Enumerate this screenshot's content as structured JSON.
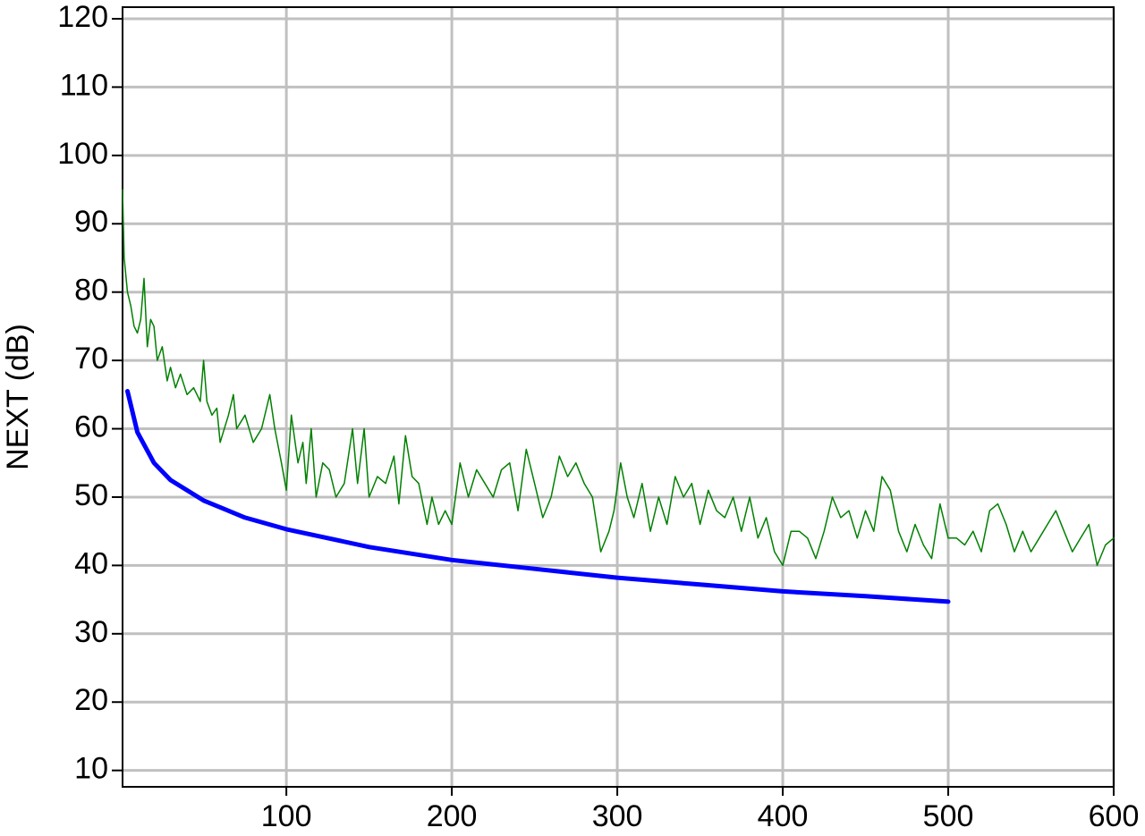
{
  "chart_data": {
    "type": "line",
    "y_label": "NEXT (dB)",
    "xlim": [
      1,
      600
    ],
    "ylim": [
      7.6,
      121.7
    ],
    "xticks": [
      100,
      200,
      300,
      400,
      500,
      600
    ],
    "yticks": [
      10,
      20,
      30,
      40,
      50,
      60,
      70,
      80,
      90,
      100,
      110,
      120
    ],
    "grid": true,
    "series": [
      {
        "color": "#008000",
        "width": 1.5,
        "x": [
          1,
          2,
          4,
          6,
          8,
          10,
          12,
          14,
          16,
          18,
          20,
          22,
          25,
          28,
          30,
          33,
          36,
          40,
          44,
          48,
          50,
          52,
          55,
          58,
          60,
          65,
          68,
          70,
          75,
          80,
          85,
          90,
          93,
          97,
          100,
          103,
          107,
          110,
          112,
          115,
          118,
          122,
          126,
          130,
          135,
          140,
          143,
          147,
          150,
          155,
          160,
          165,
          168,
          172,
          176,
          180,
          185,
          188,
          192,
          196,
          200,
          205,
          210,
          215,
          220,
          225,
          230,
          235,
          240,
          245,
          250,
          255,
          260,
          265,
          270,
          275,
          280,
          285,
          290,
          295,
          298,
          302,
          306,
          310,
          315,
          320,
          325,
          330,
          335,
          340,
          345,
          350,
          355,
          360,
          365,
          370,
          375,
          380,
          385,
          390,
          395,
          400,
          405,
          410,
          415,
          420,
          425,
          430,
          435,
          440,
          445,
          450,
          455,
          460,
          465,
          470,
          475,
          480,
          485,
          490,
          495,
          500,
          505,
          510,
          515,
          520,
          525,
          530,
          535,
          540,
          545,
          550,
          555,
          560,
          565,
          570,
          575,
          580,
          585,
          590,
          595,
          600
        ],
        "values": [
          95,
          85,
          80,
          78,
          75,
          74,
          76,
          82,
          72,
          76,
          75,
          70,
          72,
          67,
          69,
          66,
          68,
          65,
          66,
          64,
          70,
          64,
          62,
          63,
          58,
          62,
          65,
          60,
          62,
          58,
          60,
          65,
          60,
          55,
          51,
          62,
          55,
          58,
          52,
          60,
          50,
          55,
          54,
          50,
          52,
          60,
          52,
          60,
          50,
          53,
          52,
          56,
          49,
          59,
          53,
          52,
          46,
          50,
          46,
          48,
          46,
          55,
          50,
          54,
          52,
          50,
          54,
          55,
          48,
          57,
          52,
          47,
          50,
          56,
          53,
          55,
          52,
          50,
          42,
          45,
          48,
          55,
          50,
          47,
          52,
          45,
          50,
          46,
          53,
          50,
          52,
          46,
          51,
          48,
          47,
          50,
          45,
          50,
          44,
          47,
          42,
          40,
          45,
          45,
          44,
          41,
          45,
          50,
          47,
          48,
          44,
          48,
          45,
          53,
          51,
          45,
          42,
          46,
          43,
          41,
          49,
          44,
          44,
          43,
          45,
          42,
          48,
          49,
          46,
          42,
          45,
          42,
          44,
          46,
          48,
          45,
          42,
          44,
          46,
          40,
          43,
          44
        ]
      },
      {
        "color": "#0000ff",
        "width": 5,
        "x": [
          4,
          10,
          20,
          30,
          50,
          75,
          100,
          150,
          200,
          250,
          300,
          350,
          400,
          450,
          500
        ],
        "values": [
          65.5,
          59.5,
          55,
          52.5,
          49.5,
          47,
          45.3,
          42.7,
          40.8,
          39.5,
          38.2,
          37.2,
          36.2,
          35.5,
          34.7
        ]
      }
    ]
  }
}
